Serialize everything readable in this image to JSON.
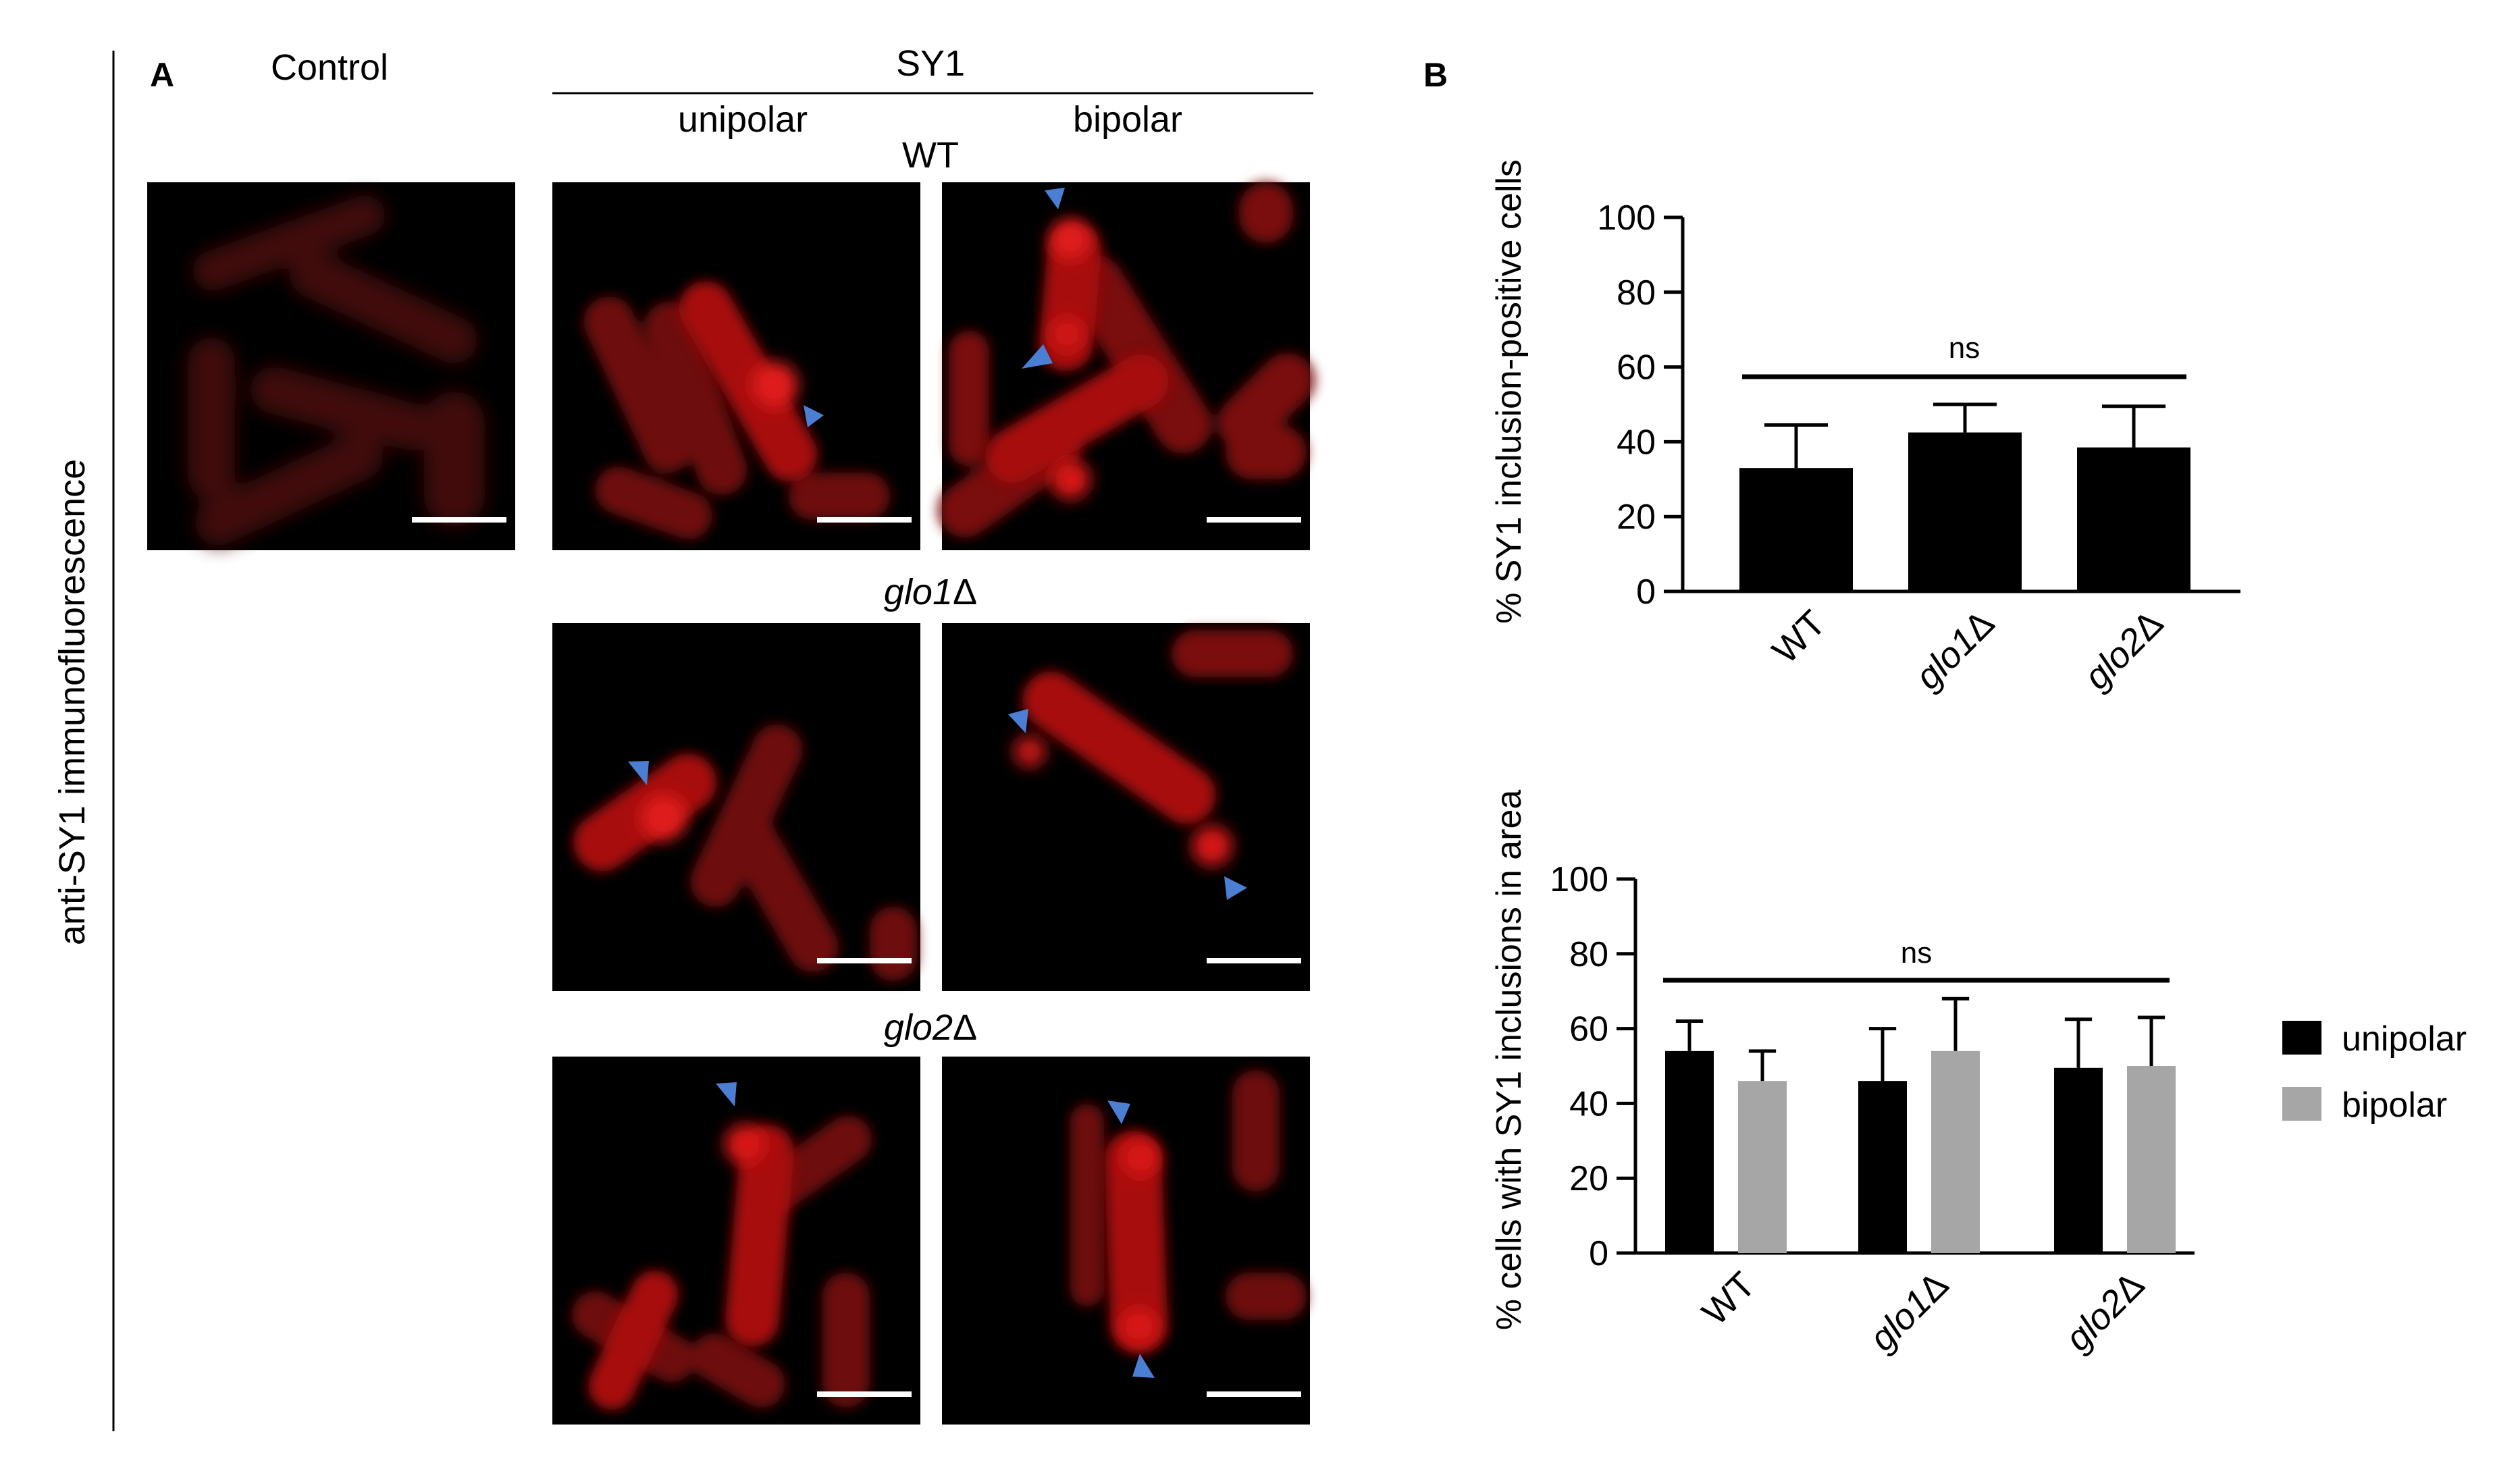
{
  "panel_a": {
    "label": "A",
    "side_label": "anti-SY1 immunofluorescence",
    "control_header": "Control",
    "sy1_header": "SY1",
    "unipolar_header": "unipolar",
    "bipolar_header": "bipolar",
    "strains": [
      {
        "label": "WT",
        "italic": false,
        "delta": ""
      },
      {
        "label": "glo1",
        "italic": true,
        "delta": "Δ"
      },
      {
        "label": "glo2",
        "italic": true,
        "delta": "Δ"
      }
    ]
  },
  "panel_b": {
    "label": "B",
    "significance_top": "ns",
    "significance_bottom": "ns",
    "legend": [
      {
        "name": "unipolar",
        "color": "#000000"
      },
      {
        "name": "bipolar",
        "color": "#a6a6a6"
      }
    ]
  },
  "colors": {
    "micrograph_bg": "#000000",
    "cell_red": "#b31212",
    "arrowhead": "#4a7fd4",
    "bar_black": "#000000",
    "bar_gray": "#a6a6a6"
  },
  "chart_data": [
    {
      "type": "bar",
      "ylabel": "% SY1 inclusion-positive cells",
      "ylim": [
        0,
        100
      ],
      "yticks": [
        "0",
        "20",
        "40",
        "60",
        "80",
        "100"
      ],
      "categories": [
        {
          "base": "WT",
          "delta": ""
        },
        {
          "base": "glo1",
          "delta": "Δ"
        },
        {
          "base": "glo2",
          "delta": "Δ"
        }
      ],
      "series": [
        {
          "values": [
            33,
            42.5,
            38.5
          ],
          "errors": [
            11.5,
            7.5,
            11
          ],
          "color": "#000000"
        }
      ],
      "annotation": "ns"
    },
    {
      "type": "bar",
      "ylabel": "% cells with SY1 inclusions in area",
      "ylim": [
        0,
        100
      ],
      "yticks": [
        "0",
        "20",
        "40",
        "60",
        "80",
        "100"
      ],
      "categories": [
        {
          "base": "WT",
          "delta": ""
        },
        {
          "base": "glo1",
          "delta": "Δ"
        },
        {
          "base": "glo2",
          "delta": "Δ"
        }
      ],
      "series": [
        {
          "name": "unipolar",
          "values": [
            54,
            46,
            49.5
          ],
          "errors": [
            8,
            14,
            13
          ],
          "color": "#000000"
        },
        {
          "name": "bipolar",
          "values": [
            46,
            54,
            50
          ],
          "errors": [
            8,
            14,
            13
          ],
          "color": "#a6a6a6"
        }
      ],
      "annotation": "ns",
      "legend": "right"
    }
  ]
}
